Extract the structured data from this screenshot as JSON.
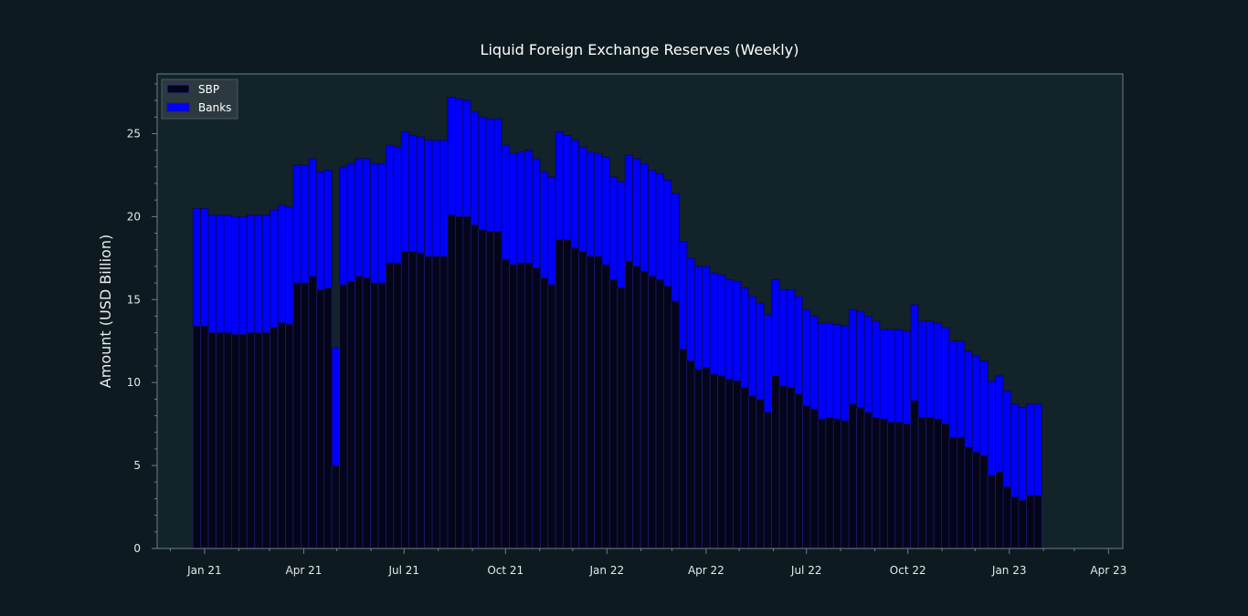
{
  "colors": {
    "background": "#0d1b20",
    "plot_background": "#13232a",
    "axes": "#6f7f85",
    "sbp": "#05051a",
    "banks": "#0000ff",
    "bar_edge": "#1a1a6e",
    "text": "#e4e8ea"
  },
  "chart_data": {
    "type": "bar",
    "stacked": true,
    "title": "Liquid Foreign Exchange Reserves (Weekly)",
    "xlabel": "",
    "ylabel": "Amount (USD Billion)",
    "ylim": [
      0,
      28.6
    ],
    "yticks": [
      0,
      5,
      10,
      15,
      20,
      25
    ],
    "xlim": [
      "2020-11-19",
      "2023-04-14"
    ],
    "xticks": [
      {
        "date": "2021-01-01",
        "label": "Jan 21"
      },
      {
        "date": "2021-04-01",
        "label": "Apr 21"
      },
      {
        "date": "2021-07-01",
        "label": "Jul 21"
      },
      {
        "date": "2021-10-01",
        "label": "Oct 21"
      },
      {
        "date": "2022-01-01",
        "label": "Jan 22"
      },
      {
        "date": "2022-04-01",
        "label": "Apr 22"
      },
      {
        "date": "2022-07-01",
        "label": "Jul 22"
      },
      {
        "date": "2022-10-01",
        "label": "Oct 22"
      },
      {
        "date": "2023-01-01",
        "label": "Jan 23"
      },
      {
        "date": "2023-04-01",
        "label": "Apr 23"
      }
    ],
    "legend": {
      "position": "top-left",
      "entries": [
        "SBP",
        "Banks"
      ]
    },
    "grid": false,
    "start_date": "2020-12-25",
    "interval_days": 7,
    "series": [
      {
        "name": "SBP",
        "color": "#05051a",
        "values": [
          13.4,
          13.4,
          13.0,
          13.0,
          13.0,
          12.9,
          12.9,
          13.0,
          13.0,
          13.0,
          13.3,
          13.6,
          13.5,
          16.0,
          16.0,
          16.4,
          15.6,
          15.7,
          5.0,
          15.9,
          16.1,
          16.4,
          16.3,
          16.0,
          16.0,
          17.2,
          17.2,
          17.9,
          17.9,
          17.8,
          17.6,
          17.6,
          17.6,
          20.1,
          20.0,
          20.0,
          19.5,
          19.2,
          19.1,
          19.1,
          17.4,
          17.1,
          17.2,
          17.2,
          16.9,
          16.3,
          15.9,
          18.6,
          18.6,
          18.1,
          17.9,
          17.6,
          17.6,
          17.1,
          16.2,
          15.7,
          17.3,
          17.0,
          16.7,
          16.4,
          16.2,
          15.8,
          14.9,
          12.0,
          11.3,
          10.8,
          10.9,
          10.5,
          10.4,
          10.2,
          10.1,
          9.7,
          9.2,
          9.0,
          8.2,
          10.4,
          9.8,
          9.7,
          9.3,
          8.6,
          8.4,
          7.8,
          7.9,
          7.8,
          7.7,
          8.7,
          8.5,
          8.2,
          7.9,
          7.8,
          7.6,
          7.6,
          7.5,
          8.9,
          7.9,
          7.9,
          7.8,
          7.5,
          6.7,
          6.7,
          6.1,
          5.8,
          5.6,
          4.4,
          4.6,
          3.7,
          3.1,
          2.9,
          3.2,
          3.2
        ]
      },
      {
        "name": "Banks",
        "color": "#0000ff",
        "values": [
          7.1,
          7.1,
          7.1,
          7.1,
          7.1,
          7.1,
          7.1,
          7.1,
          7.1,
          7.1,
          7.1,
          7.1,
          7.1,
          7.1,
          7.1,
          7.1,
          7.1,
          7.1,
          7.1,
          7.1,
          7.1,
          7.1,
          7.2,
          7.2,
          7.2,
          7.1,
          7.0,
          7.2,
          7.0,
          7.0,
          7.0,
          7.0,
          7.0,
          7.1,
          7.1,
          7.0,
          6.8,
          6.8,
          6.8,
          6.8,
          6.9,
          6.7,
          6.7,
          6.8,
          6.6,
          6.4,
          6.5,
          6.5,
          6.3,
          6.5,
          6.3,
          6.3,
          6.2,
          6.5,
          6.2,
          6.4,
          6.4,
          6.5,
          6.5,
          6.4,
          6.4,
          6.4,
          6.5,
          6.5,
          6.2,
          6.2,
          6.1,
          6.1,
          6.1,
          6.0,
          6.0,
          6.0,
          6.0,
          5.8,
          5.9,
          5.8,
          5.8,
          5.9,
          5.9,
          5.8,
          5.6,
          5.8,
          5.7,
          5.7,
          5.7,
          5.7,
          5.8,
          5.8,
          5.8,
          5.4,
          5.6,
          5.6,
          5.6,
          5.8,
          5.8,
          5.8,
          5.8,
          5.8,
          5.8,
          5.8,
          5.8,
          5.8,
          5.7,
          5.7,
          5.8,
          5.8,
          5.6,
          5.6,
          5.5,
          5.5
        ]
      }
    ]
  }
}
